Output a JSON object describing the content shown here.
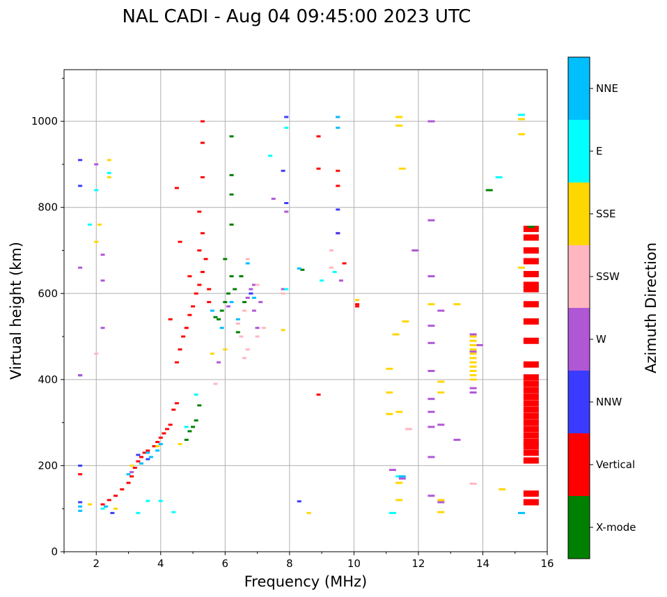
{
  "chart_data": {
    "type": "scatter",
    "title": "NAL CADI - Aug 04 09:45:00 2023 UTC",
    "xlabel": "Frequency (MHz)",
    "ylabel": "Virtual height (km)",
    "xlim": [
      1,
      16
    ],
    "ylim": [
      0,
      1120
    ],
    "xticks": [
      2,
      4,
      6,
      8,
      10,
      12,
      14,
      16
    ],
    "yticks": [
      0,
      200,
      400,
      600,
      800,
      1000
    ],
    "grid": true,
    "colorbar": {
      "label": "Azimuth Direction",
      "categories": [
        {
          "name": "X-mode",
          "color": "#008000"
        },
        {
          "name": "Vertical",
          "color": "#ff0000"
        },
        {
          "name": "NNW",
          "color": "#3b3bff"
        },
        {
          "name": "W",
          "color": "#b057d6"
        },
        {
          "name": "SSW",
          "color": "#ffb6c1"
        },
        {
          "name": "SSE",
          "color": "#ffd700"
        },
        {
          "name": "E",
          "color": "#00ffff"
        },
        {
          "name": "NNE",
          "color": "#00bfff"
        }
      ]
    },
    "series": [
      {
        "name": "Vertical",
        "points": [
          [
            1.5,
            180
          ],
          [
            2.2,
            110
          ],
          [
            2.4,
            120
          ],
          [
            2.6,
            130
          ],
          [
            2.8,
            145
          ],
          [
            3.0,
            160
          ],
          [
            3.1,
            175
          ],
          [
            3.2,
            195
          ],
          [
            3.3,
            210
          ],
          [
            3.4,
            220
          ],
          [
            3.5,
            230
          ],
          [
            3.6,
            235
          ],
          [
            3.8,
            245
          ],
          [
            3.9,
            255
          ],
          [
            4.0,
            265
          ],
          [
            4.1,
            275
          ],
          [
            4.2,
            285
          ],
          [
            4.3,
            295
          ],
          [
            4.4,
            330
          ],
          [
            4.5,
            345
          ],
          [
            4.3,
            540
          ],
          [
            4.5,
            440
          ],
          [
            4.6,
            470
          ],
          [
            4.7,
            500
          ],
          [
            4.8,
            520
          ],
          [
            4.9,
            550
          ],
          [
            5.0,
            570
          ],
          [
            5.1,
            600
          ],
          [
            5.2,
            620
          ],
          [
            5.3,
            650
          ],
          [
            5.2,
            700
          ],
          [
            5.3,
            740
          ],
          [
            5.2,
            790
          ],
          [
            5.3,
            870
          ],
          [
            5.3,
            950
          ],
          [
            5.3,
            1000
          ],
          [
            4.6,
            720
          ],
          [
            4.5,
            845
          ],
          [
            4.9,
            640
          ],
          [
            5.4,
            680
          ],
          [
            5.5,
            610
          ],
          [
            5.5,
            580
          ],
          [
            8.9,
            965
          ],
          [
            8.9,
            890
          ],
          [
            8.9,
            365
          ],
          [
            9.5,
            885
          ],
          [
            9.5,
            850
          ],
          [
            9.5,
            740
          ],
          [
            9.7,
            670
          ],
          [
            10.1,
            575
          ],
          [
            10.1,
            570
          ],
          [
            15.5,
            750
          ],
          [
            15.5,
            730
          ],
          [
            15.5,
            700
          ],
          [
            15.5,
            675
          ],
          [
            15.5,
            645
          ],
          [
            15.5,
            620
          ],
          [
            15.5,
            610
          ],
          [
            15.5,
            575
          ],
          [
            15.5,
            535
          ],
          [
            15.5,
            490
          ],
          [
            15.5,
            435
          ],
          [
            15.5,
            405
          ],
          [
            15.5,
            390
          ],
          [
            15.5,
            375
          ],
          [
            15.5,
            360
          ],
          [
            15.5,
            345
          ],
          [
            15.5,
            330
          ],
          [
            15.5,
            315
          ],
          [
            15.5,
            300
          ],
          [
            15.5,
            285
          ],
          [
            15.5,
            270
          ],
          [
            15.5,
            255
          ],
          [
            15.5,
            245
          ],
          [
            15.5,
            230
          ],
          [
            15.5,
            212
          ],
          [
            15.5,
            135
          ],
          [
            15.5,
            115
          ]
        ]
      },
      {
        "name": "X-mode",
        "points": [
          [
            4.9,
            280
          ],
          [
            5.0,
            290
          ],
          [
            5.1,
            305
          ],
          [
            5.2,
            340
          ],
          [
            4.8,
            260
          ],
          [
            5.8,
            540
          ],
          [
            5.9,
            560
          ],
          [
            6.0,
            580
          ],
          [
            6.1,
            600
          ],
          [
            6.2,
            640
          ],
          [
            6.0,
            680
          ],
          [
            6.2,
            760
          ],
          [
            6.2,
            830
          ],
          [
            6.2,
            875
          ],
          [
            6.2,
            965
          ],
          [
            6.6,
            580
          ],
          [
            6.3,
            610
          ],
          [
            6.5,
            640
          ],
          [
            6.4,
            510
          ],
          [
            5.7,
            545
          ],
          [
            8.4,
            655
          ],
          [
            14.2,
            840
          ],
          [
            15.5,
            755
          ]
        ]
      },
      {
        "name": "NNW",
        "points": [
          [
            1.5,
            910
          ],
          [
            1.5,
            850
          ],
          [
            1.5,
            410
          ],
          [
            1.5,
            115
          ],
          [
            1.5,
            200
          ],
          [
            2.5,
            90
          ],
          [
            3.3,
            225
          ],
          [
            3.6,
            215
          ],
          [
            6.8,
            600
          ],
          [
            7.8,
            885
          ],
          [
            7.9,
            810
          ],
          [
            7.9,
            1010
          ],
          [
            9.5,
            1010
          ],
          [
            9.5,
            795
          ],
          [
            9.5,
            740
          ],
          [
            8.3,
            117
          ]
        ]
      },
      {
        "name": "W",
        "points": [
          [
            1.5,
            660
          ],
          [
            1.5,
            410
          ],
          [
            2.2,
            690
          ],
          [
            2.2,
            630
          ],
          [
            2.2,
            520
          ],
          [
            2.0,
            900
          ],
          [
            3.1,
            185
          ],
          [
            6.8,
            610
          ],
          [
            6.9,
            620
          ],
          [
            6.7,
            590
          ],
          [
            6.9,
            560
          ],
          [
            7.1,
            580
          ],
          [
            7.0,
            520
          ],
          [
            7.5,
            820
          ],
          [
            7.8,
            610
          ],
          [
            7.9,
            790
          ],
          [
            9.6,
            630
          ],
          [
            11.2,
            190
          ],
          [
            11.5,
            170
          ],
          [
            11.9,
            700
          ],
          [
            12.4,
            1000
          ],
          [
            12.4,
            770
          ],
          [
            12.4,
            640
          ],
          [
            12.4,
            525
          ],
          [
            12.4,
            485
          ],
          [
            12.4,
            420
          ],
          [
            12.4,
            355
          ],
          [
            12.4,
            325
          ],
          [
            12.4,
            290
          ],
          [
            12.4,
            220
          ],
          [
            12.4,
            130
          ],
          [
            12.7,
            560
          ],
          [
            12.7,
            295
          ],
          [
            12.7,
            115
          ],
          [
            13.2,
            260
          ],
          [
            13.7,
            505
          ],
          [
            13.7,
            465
          ],
          [
            13.7,
            380
          ],
          [
            13.7,
            370
          ],
          [
            13.9,
            480
          ],
          [
            6.1,
            570
          ],
          [
            5.8,
            440
          ]
        ]
      },
      {
        "name": "SSW",
        "points": [
          [
            2.0,
            460
          ],
          [
            6.4,
            530
          ],
          [
            6.5,
            500
          ],
          [
            6.7,
            470
          ],
          [
            6.6,
            450
          ],
          [
            6.6,
            560
          ],
          [
            7.0,
            500
          ],
          [
            7.2,
            520
          ],
          [
            7.0,
            620
          ],
          [
            7.8,
            600
          ],
          [
            9.3,
            700
          ],
          [
            9.3,
            660
          ],
          [
            11.7,
            285
          ],
          [
            13.7,
            158
          ],
          [
            6.7,
            680
          ],
          [
            5.7,
            390
          ]
        ]
      },
      {
        "name": "SSE",
        "points": [
          [
            1.8,
            110
          ],
          [
            2.0,
            720
          ],
          [
            2.1,
            760
          ],
          [
            2.4,
            870
          ],
          [
            2.4,
            910
          ],
          [
            2.6,
            100
          ],
          [
            3.1,
            200
          ],
          [
            3.9,
            245
          ],
          [
            4.6,
            250
          ],
          [
            5.6,
            460
          ],
          [
            6.0,
            470
          ],
          [
            7.8,
            515
          ],
          [
            8.6,
            90
          ],
          [
            10.1,
            585
          ],
          [
            11.1,
            425
          ],
          [
            11.1,
            370
          ],
          [
            11.1,
            320
          ],
          [
            11.3,
            505
          ],
          [
            11.4,
            1010
          ],
          [
            11.4,
            990
          ],
          [
            11.4,
            325
          ],
          [
            11.4,
            160
          ],
          [
            11.4,
            120
          ],
          [
            11.5,
            890
          ],
          [
            11.6,
            535
          ],
          [
            12.4,
            575
          ],
          [
            12.7,
            395
          ],
          [
            12.7,
            370
          ],
          [
            12.7,
            120
          ],
          [
            12.7,
            92
          ],
          [
            13.2,
            575
          ],
          [
            13.7,
            500
          ],
          [
            13.7,
            490
          ],
          [
            13.7,
            480
          ],
          [
            13.7,
            470
          ],
          [
            13.7,
            460
          ],
          [
            13.7,
            450
          ],
          [
            13.7,
            440
          ],
          [
            13.7,
            430
          ],
          [
            13.7,
            420
          ],
          [
            13.7,
            410
          ],
          [
            13.7,
            400
          ],
          [
            14.6,
            145
          ],
          [
            15.2,
            660
          ],
          [
            15.2,
            1005
          ],
          [
            15.2,
            970
          ]
        ]
      },
      {
        "name": "E",
        "points": [
          [
            1.8,
            760
          ],
          [
            2.0,
            840
          ],
          [
            2.4,
            880
          ],
          [
            2.2,
            100
          ],
          [
            3.3,
            90
          ],
          [
            3.6,
            118
          ],
          [
            4.0,
            118
          ],
          [
            4.4,
            92
          ],
          [
            4.8,
            290
          ],
          [
            5.1,
            365
          ],
          [
            7.4,
            920
          ],
          [
            7.9,
            985
          ],
          [
            7.9,
            610
          ],
          [
            9.0,
            630
          ],
          [
            9.4,
            650
          ],
          [
            11.2,
            90
          ],
          [
            11.4,
            175
          ],
          [
            14.5,
            870
          ],
          [
            15.2,
            1015
          ]
        ]
      },
      {
        "name": "NNE",
        "points": [
          [
            1.5,
            105
          ],
          [
            1.5,
            95
          ],
          [
            2.3,
            105
          ],
          [
            3.0,
            180
          ],
          [
            3.4,
            205
          ],
          [
            3.6,
            230
          ],
          [
            3.7,
            220
          ],
          [
            3.9,
            235
          ],
          [
            4.0,
            250
          ],
          [
            5.6,
            560
          ],
          [
            5.9,
            520
          ],
          [
            6.2,
            580
          ],
          [
            6.4,
            540
          ],
          [
            6.7,
            670
          ],
          [
            6.9,
            590
          ],
          [
            8.3,
            658
          ],
          [
            9.5,
            1010
          ],
          [
            9.5,
            985
          ],
          [
            11.5,
            175
          ],
          [
            15.2,
            90
          ]
        ]
      }
    ]
  }
}
